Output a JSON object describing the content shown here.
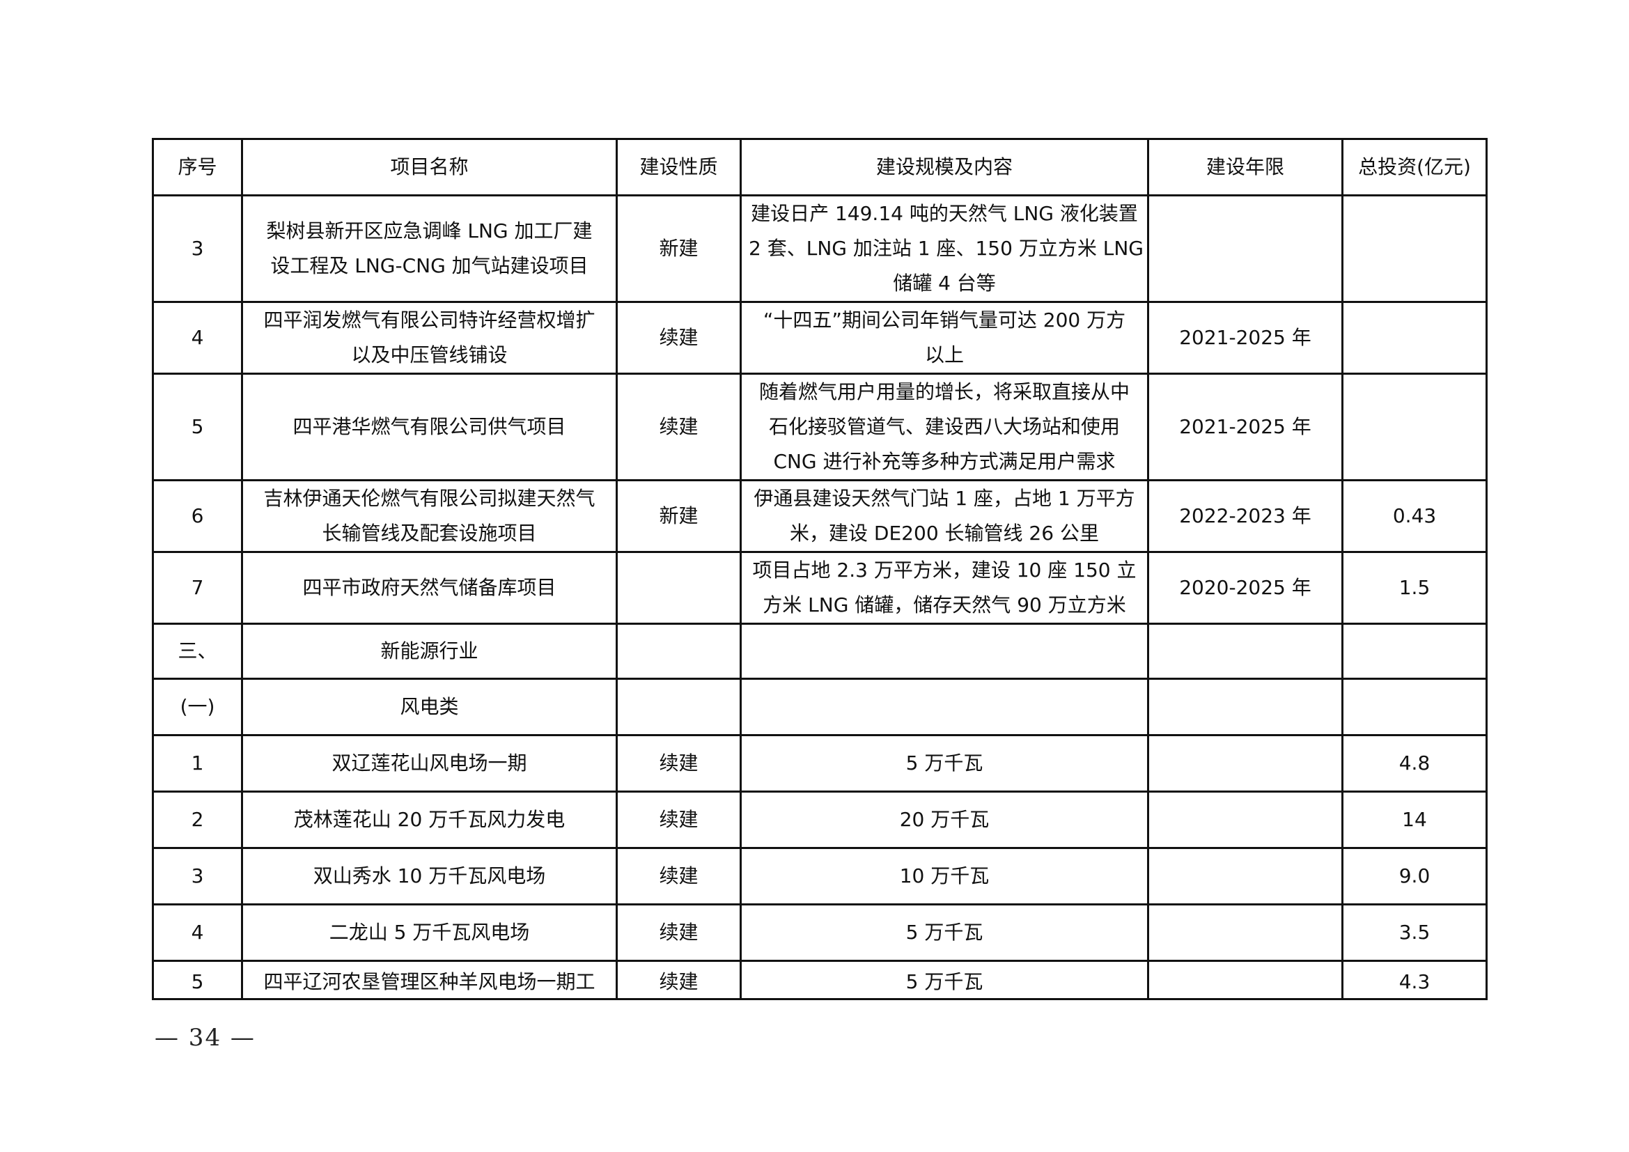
{
  "table": {
    "headers": [
      "序号",
      "项目名称",
      "建设性质",
      "建设规模及内容",
      "建设年限",
      "总投资(亿元)"
    ],
    "rows": [
      [
        [
          "3"
        ],
        [
          "梨树县新开区应急调峰 LNG 加工厂建",
          "设工程及 LNG-CNG 加气站建设项目"
        ],
        [
          "新建"
        ],
        [
          "建设日产 149.14 吨的天然气 LNG 液化装置",
          "2 套、LNG 加注站 1 座、150 万立方米 LNG",
          "储罐 4 台等"
        ],
        [
          ""
        ],
        [
          ""
        ]
      ],
      [
        [
          "4"
        ],
        [
          "四平润发燃气有限公司特许经营权增扩",
          "以及中压管线铺设"
        ],
        [
          "续建"
        ],
        [
          "“十四五”期间公司年销气量可达 200 万方",
          "以上"
        ],
        [
          "2021-2025 年"
        ],
        [
          ""
        ]
      ],
      [
        [
          "5"
        ],
        [
          "四平港华燃气有限公司供气项目"
        ],
        [
          "续建"
        ],
        [
          "随着燃气用户用量的增长，将采取直接从中",
          "石化接驳管道气、建设西八大场站和使用",
          "CNG 进行补充等多种方式满足用户需求"
        ],
        [
          "2021-2025 年"
        ],
        [
          ""
        ]
      ],
      [
        [
          "6"
        ],
        [
          "吉林伊通天伦燃气有限公司拟建天然气",
          "长输管线及配套设施项目"
        ],
        [
          "新建"
        ],
        [
          "伊通县建设天然气门站 1 座，占地 1 万平方",
          "米，建设 DE200 长输管线 26 公里"
        ],
        [
          "2022-2023 年"
        ],
        [
          "0.43"
        ]
      ],
      [
        [
          "7"
        ],
        [
          "四平市政府天然气储备库项目"
        ],
        [
          ""
        ],
        [
          "项目占地 2.3 万平方米，建设 10 座 150 立",
          "方米 LNG 储罐，储存天然气 90 万立方米"
        ],
        [
          "2020-2025 年"
        ],
        [
          "1.5"
        ]
      ],
      [
        [
          "三、"
        ],
        [
          "新能源行业"
        ],
        [
          ""
        ],
        [
          ""
        ],
        [
          ""
        ],
        [
          ""
        ]
      ],
      [
        [
          "(一)"
        ],
        [
          "风电类"
        ],
        [
          ""
        ],
        [
          ""
        ],
        [
          ""
        ],
        [
          ""
        ]
      ],
      [
        [
          "1"
        ],
        [
          "双辽莲花山风电场一期"
        ],
        [
          "续建"
        ],
        [
          "5 万千瓦"
        ],
        [
          ""
        ],
        [
          "4.8"
        ]
      ],
      [
        [
          "2"
        ],
        [
          "茂林莲花山 20 万千瓦风力发电"
        ],
        [
          "续建"
        ],
        [
          "20 万千瓦"
        ],
        [
          ""
        ],
        [
          "14"
        ]
      ],
      [
        [
          "3"
        ],
        [
          "双山秀水 10 万千瓦风电场"
        ],
        [
          "续建"
        ],
        [
          "10 万千瓦"
        ],
        [
          ""
        ],
        [
          "9.0"
        ]
      ],
      [
        [
          "4"
        ],
        [
          "二龙山 5 万千瓦风电场"
        ],
        [
          "续建"
        ],
        [
          "5 万千瓦"
        ],
        [
          ""
        ],
        [
          "3.5"
        ]
      ],
      [
        [
          "5"
        ],
        [
          "四平辽河农垦管理区种羊风电场一期工"
        ],
        [
          "续建"
        ],
        [
          "5 万千瓦"
        ],
        [
          ""
        ],
        [
          "4.3"
        ]
      ]
    ]
  },
  "footer": {
    "page_number": "— 34 —"
  }
}
